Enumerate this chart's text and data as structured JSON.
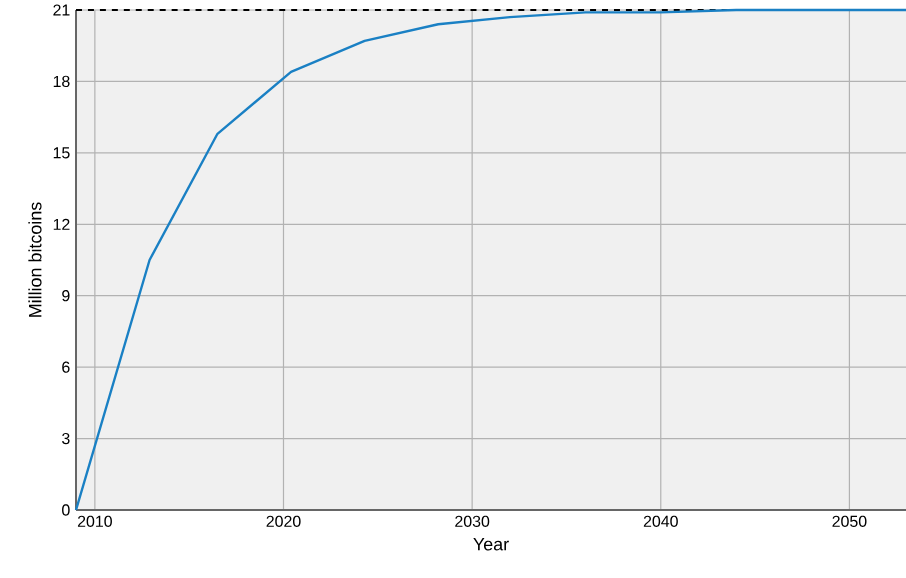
{
  "chart_data": {
    "type": "line",
    "xlabel": "Year",
    "ylabel": "Million bitcoins",
    "x": [
      2009,
      2012.9,
      2016.5,
      2020.4,
      2024.3,
      2028.2,
      2032,
      2036,
      2040,
      2044,
      2048,
      2053
    ],
    "series": [
      {
        "color": "#1a80c4",
        "values": [
          0,
          10.5,
          15.8,
          18.4,
          19.7,
          20.4,
          20.7,
          20.9,
          20.9,
          21,
          21,
          21
        ]
      }
    ],
    "xlim": [
      2009,
      2053
    ],
    "ylim": [
      0,
      21
    ],
    "xticks": [
      2010,
      2020,
      2030,
      2040,
      2050
    ],
    "yticks": [
      0,
      3,
      6,
      9,
      12,
      15,
      18,
      21
    ],
    "ref_lines": [
      {
        "axis": "y",
        "value": 21,
        "color": "#000000",
        "line_style": "dashed"
      }
    ],
    "grid": true,
    "marker": "none",
    "line_style": "solid"
  }
}
